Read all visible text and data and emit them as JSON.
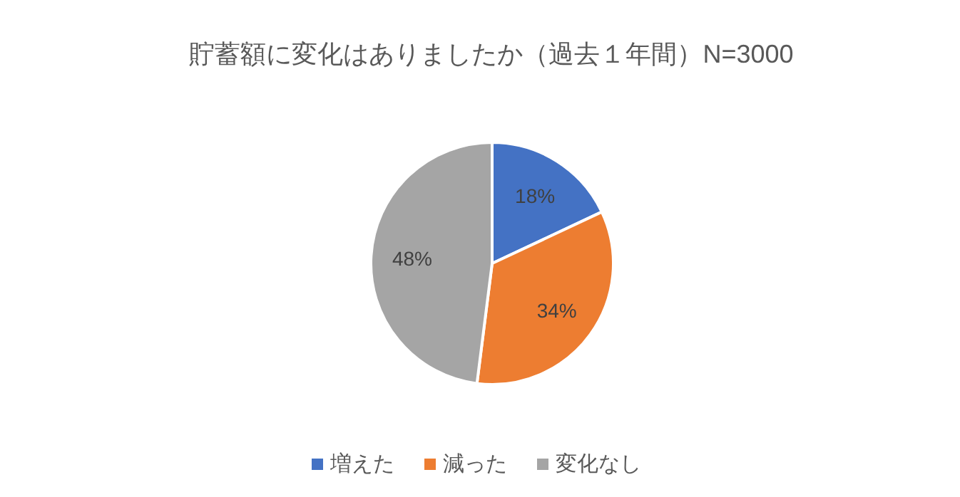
{
  "chart_data": {
    "type": "pie",
    "title": "貯蓄額に変化はありましたか（過去１年間）N=3000",
    "categories": [
      "増えた",
      "減った",
      "変化なし"
    ],
    "values": [
      18,
      34,
      48
    ],
    "value_labels": [
      "18%",
      "34%",
      "48%"
    ],
    "colors": [
      "#4472c4",
      "#ed7d31",
      "#a5a5a5"
    ],
    "legend": "bottom"
  }
}
